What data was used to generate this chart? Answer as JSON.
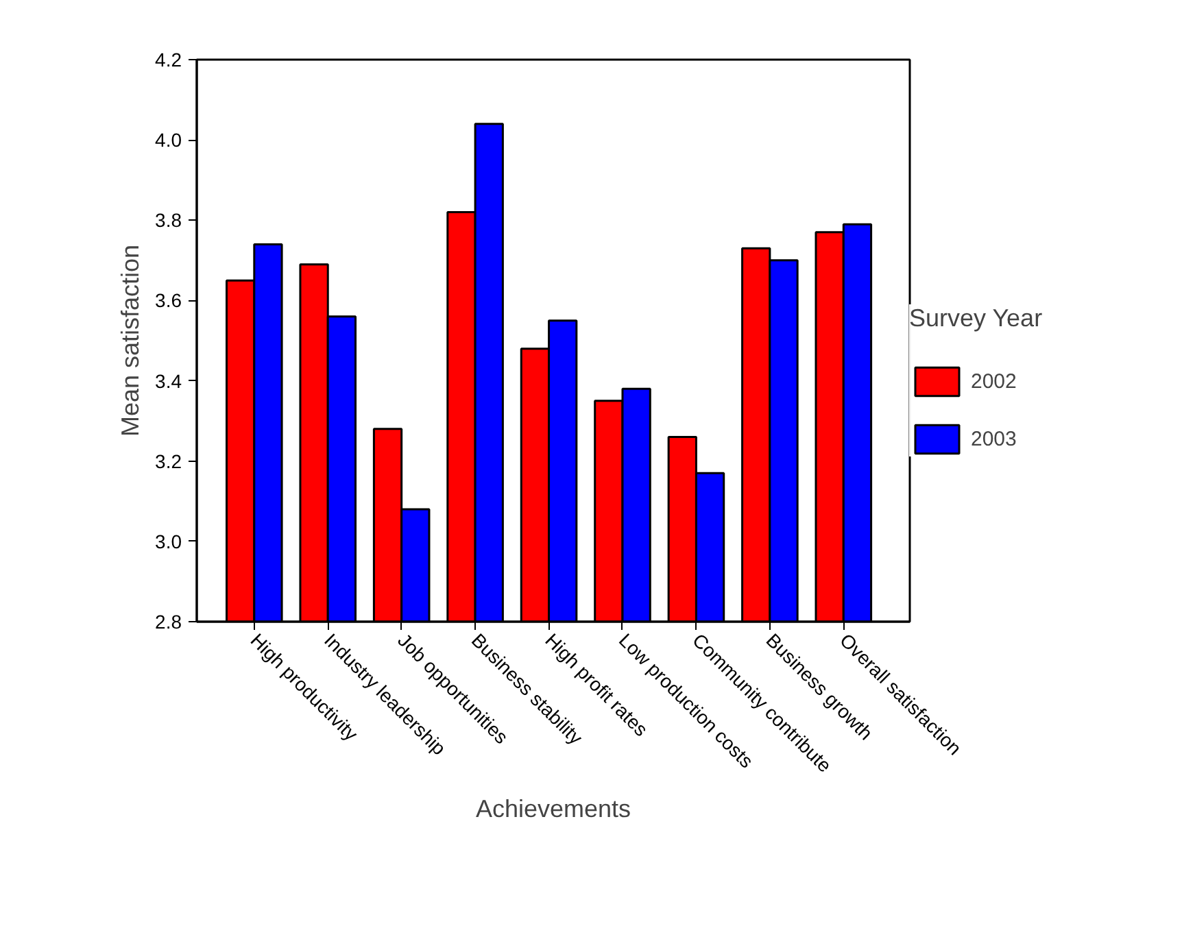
{
  "chart_data": {
    "type": "bar",
    "xlabel": "Achievements",
    "ylabel": "Mean satisfaction",
    "legend_title": "Survey Year",
    "categories": [
      "High productivity",
      "Industry leadership",
      "Job opportunities",
      "Business stability",
      "High profit rates",
      "Low production costs",
      "Community contribute",
      "Business growth",
      "Overall satisfaction"
    ],
    "series": [
      {
        "name": "2002",
        "color": "#ff0000",
        "values": [
          3.65,
          3.69,
          3.28,
          3.82,
          3.48,
          3.35,
          3.26,
          3.73,
          3.77
        ]
      },
      {
        "name": "2003",
        "color": "#0000ff",
        "values": [
          3.74,
          3.56,
          3.08,
          4.04,
          3.55,
          3.38,
          3.17,
          3.7,
          3.79
        ]
      }
    ],
    "ylim": [
      2.8,
      4.2
    ],
    "yticks": [
      {
        "value": 2.8,
        "label": "2.8"
      },
      {
        "value": 3.0,
        "label": "3.0"
      },
      {
        "value": 3.2,
        "label": "3.2"
      },
      {
        "value": 3.4,
        "label": "3.4"
      },
      {
        "value": 3.6,
        "label": "3.6"
      },
      {
        "value": 3.8,
        "label": "3.8"
      },
      {
        "value": 4.0,
        "label": "4.0"
      },
      {
        "value": 4.2,
        "label": "4.2"
      }
    ],
    "legend": "right"
  }
}
